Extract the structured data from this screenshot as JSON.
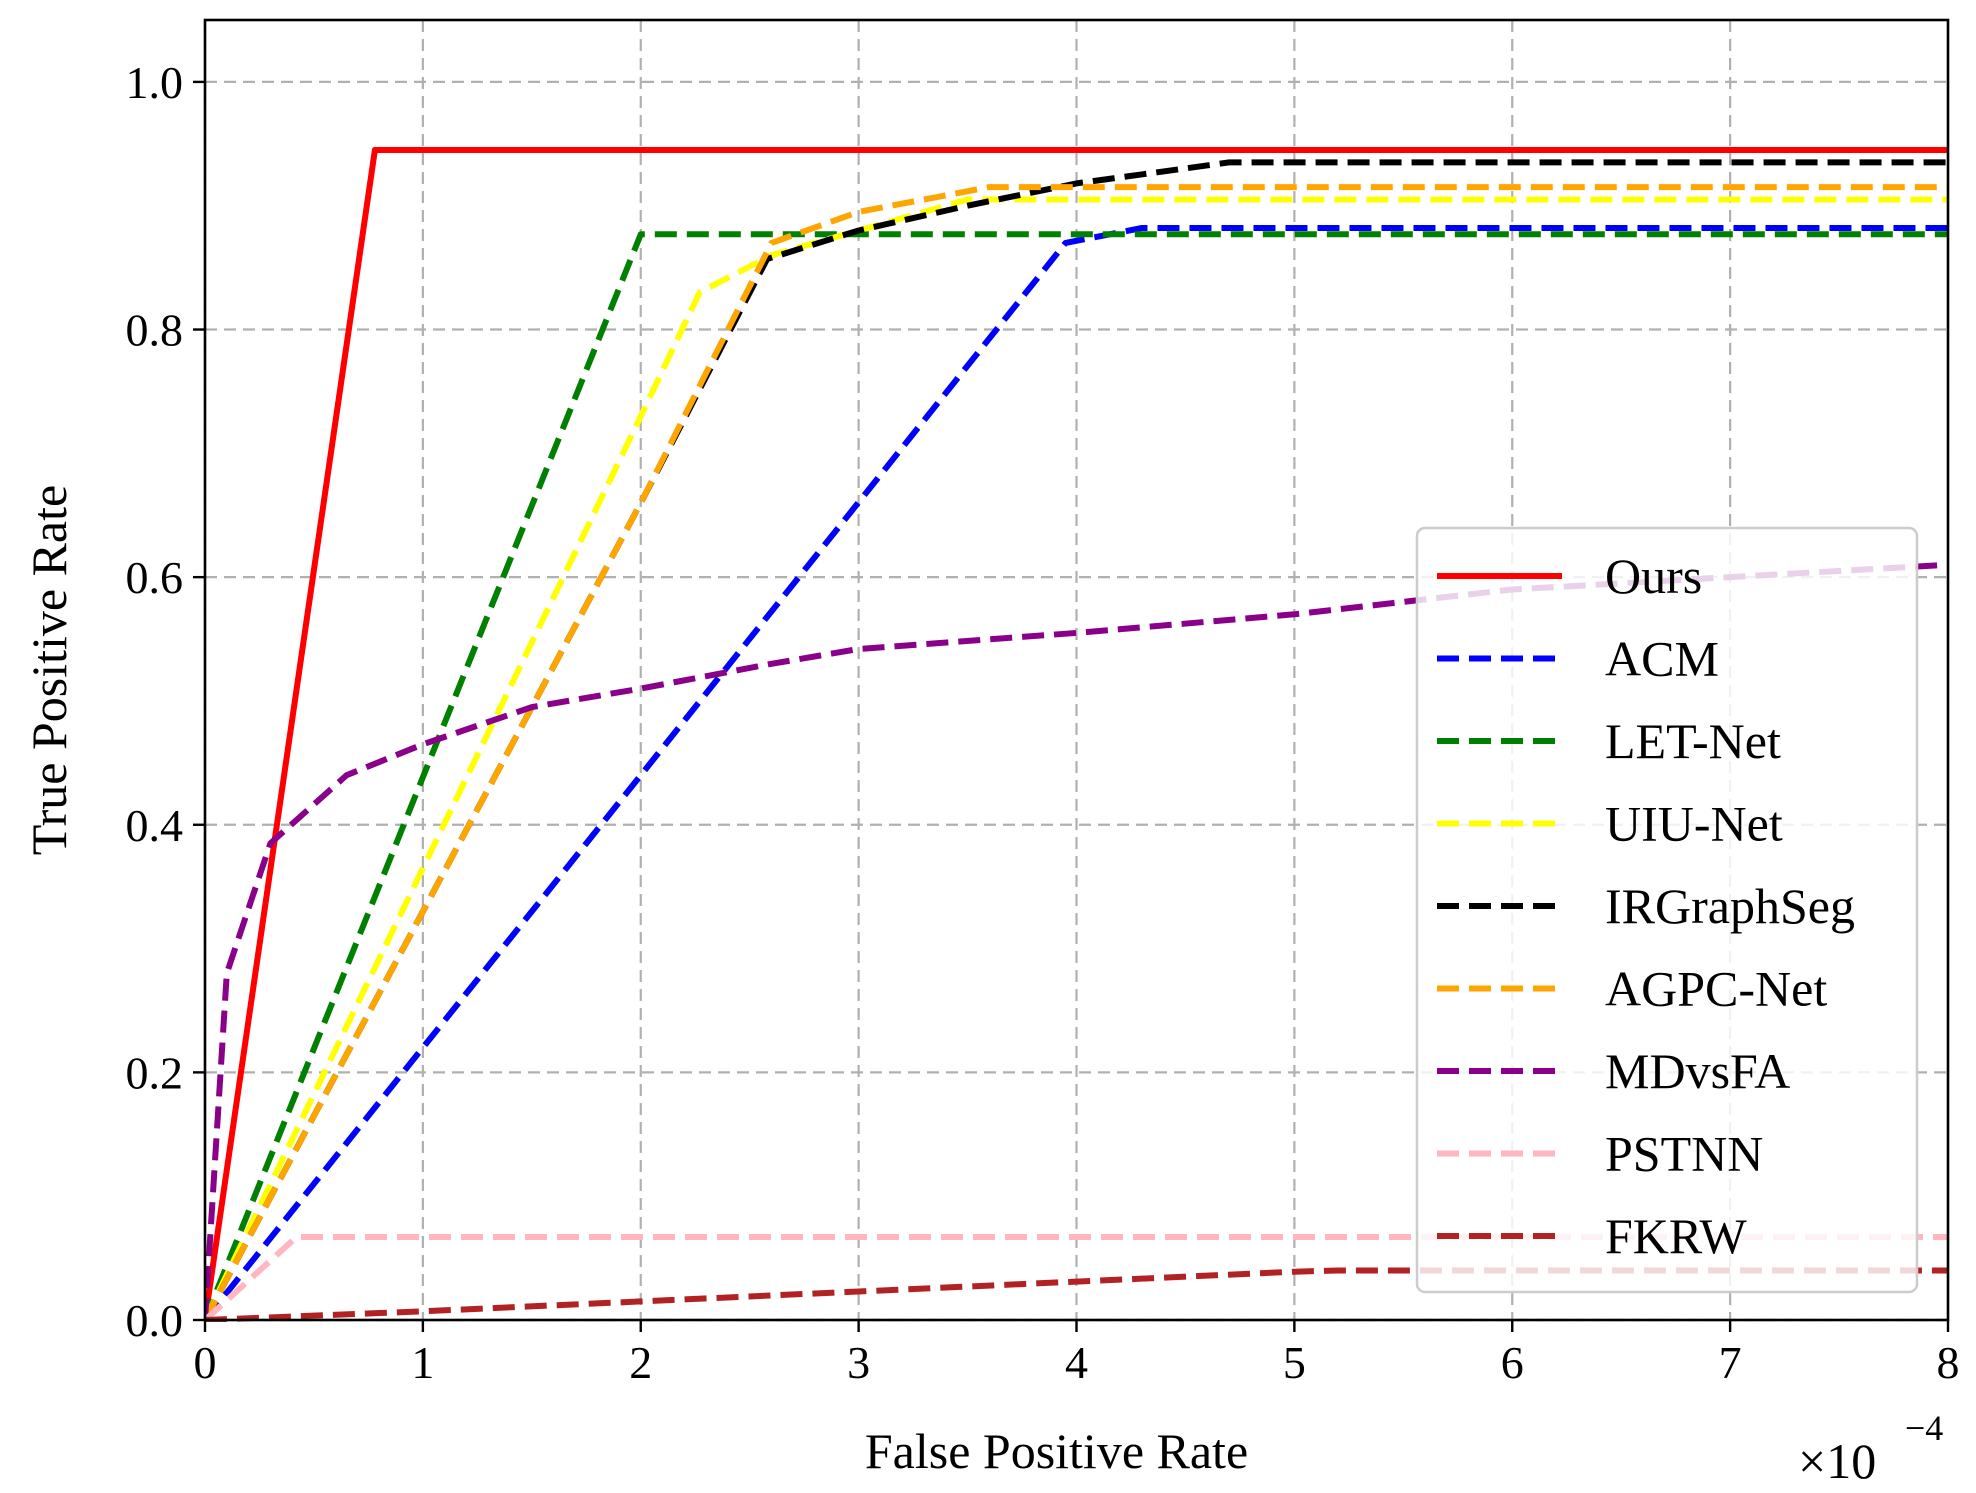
{
  "chart_data": {
    "type": "line",
    "xlabel": "False Positive Rate",
    "ylabel": "True Positive Rate",
    "x_multiplier_label": "×10",
    "x_multiplier_exponent": "−4",
    "xlim": [
      0,
      8
    ],
    "ylim": [
      0,
      1.05
    ],
    "x_ticks": [
      0,
      1,
      2,
      3,
      4,
      5,
      6,
      7,
      8
    ],
    "x_tick_labels": [
      "0",
      "1",
      "2",
      "3",
      "4",
      "5",
      "6",
      "7",
      "8"
    ],
    "y_ticks": [
      0.0,
      0.2,
      0.4,
      0.6,
      0.8,
      1.0
    ],
    "y_tick_labels": [
      "0.0",
      "0.2",
      "0.4",
      "0.6",
      "0.8",
      "1.0"
    ],
    "grid": true,
    "legend_position": "center-right",
    "series": [
      {
        "name": "Ours",
        "color": "#ff0000",
        "style": "solid",
        "x": [
          0,
          0.78,
          8
        ],
        "y": [
          0,
          0.945,
          0.945
        ]
      },
      {
        "name": "ACM",
        "color": "#0000ff",
        "style": "dashed",
        "x": [
          0,
          2.0,
          3.95,
          4.3,
          8
        ],
        "y": [
          0,
          0.44,
          0.87,
          0.882,
          0.882
        ]
      },
      {
        "name": "LET-Net",
        "color": "#008000",
        "style": "dashed",
        "x": [
          0,
          2.0,
          8
        ],
        "y": [
          0,
          0.877,
          0.877
        ]
      },
      {
        "name": "UIU-Net",
        "color": "#ffff00",
        "style": "dashed",
        "x": [
          0,
          2.0,
          2.27,
          2.6,
          3.0,
          3.5,
          8
        ],
        "y": [
          0,
          0.73,
          0.83,
          0.86,
          0.88,
          0.905,
          0.905
        ]
      },
      {
        "name": "IRGraphSeg",
        "color": "#000000",
        "style": "dashed",
        "x": [
          0,
          2.0,
          2.58,
          3.0,
          3.5,
          4.0,
          4.7,
          8
        ],
        "y": [
          0,
          0.66,
          0.857,
          0.88,
          0.9,
          0.918,
          0.935,
          0.935
        ]
      },
      {
        "name": "AGPC-Net",
        "color": "#ffa500",
        "style": "dashed",
        "x": [
          0,
          2.0,
          2.6,
          3.0,
          3.6,
          8
        ],
        "y": [
          0,
          0.66,
          0.87,
          0.895,
          0.915,
          0.915
        ]
      },
      {
        "name": "MDvsFA",
        "color": "#8b008b",
        "style": "dashed",
        "x": [
          0,
          0.1,
          0.3,
          0.65,
          1.0,
          1.5,
          2.0,
          2.6,
          3.0,
          4.0,
          5.0,
          6.0,
          7.0,
          8.0
        ],
        "y": [
          0,
          0.28,
          0.385,
          0.44,
          0.465,
          0.495,
          0.51,
          0.53,
          0.542,
          0.555,
          0.57,
          0.59,
          0.6,
          0.61
        ]
      },
      {
        "name": "PSTNN",
        "color": "#ffb6c1",
        "style": "dashed",
        "x": [
          0,
          0.42,
          8
        ],
        "y": [
          0,
          0.067,
          0.067
        ]
      },
      {
        "name": "FKRW",
        "color": "#b22222",
        "style": "dashed",
        "x": [
          0,
          1.0,
          2.0,
          3.0,
          4.0,
          5.0,
          5.2,
          8
        ],
        "y": [
          0,
          0.007,
          0.015,
          0.023,
          0.031,
          0.039,
          0.04,
          0.04
        ]
      }
    ]
  }
}
